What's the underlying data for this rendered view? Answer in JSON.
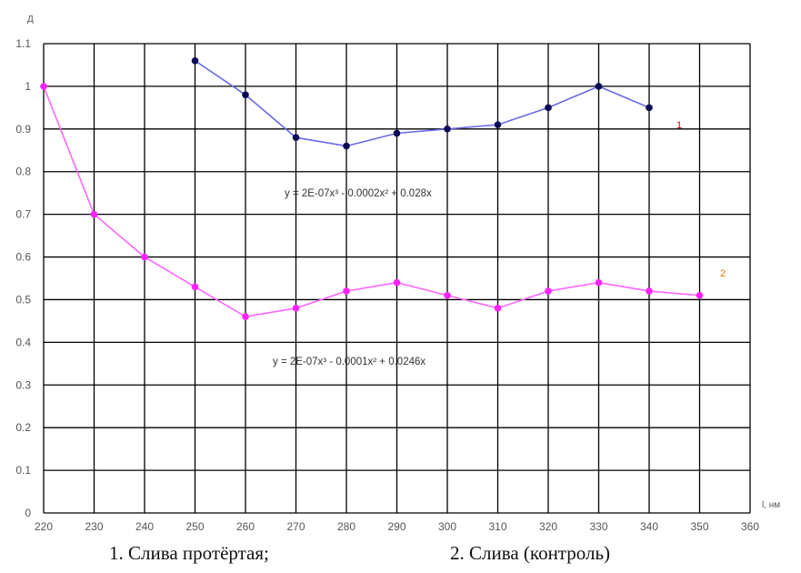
{
  "chart_data": {
    "type": "line",
    "ylabel": "Д",
    "xlabel": "l, нм",
    "xlim": [
      220,
      360
    ],
    "ylim": [
      0,
      1.1
    ],
    "x_ticks": [
      220,
      230,
      240,
      250,
      260,
      270,
      280,
      290,
      300,
      310,
      320,
      330,
      340,
      350,
      360
    ],
    "y_ticks": [
      0,
      0.1,
      0.2,
      0.3,
      0.4,
      0.5,
      0.6,
      0.7,
      0.8,
      0.9,
      1,
      1.1
    ],
    "grid": true,
    "series": [
      {
        "name": "1",
        "color": "#6a6ae8",
        "marker_color": "#0a0a55",
        "x": [
          250,
          260,
          270,
          280,
          290,
          300,
          310,
          320,
          330,
          340
        ],
        "y": [
          1.06,
          0.98,
          0.88,
          0.86,
          0.89,
          0.9,
          0.91,
          0.95,
          1.0,
          0.95
        ],
        "label_color": "#d40000"
      },
      {
        "name": "2",
        "color": "#ff66ff",
        "marker_color": "#ff22ff",
        "x": [
          220,
          230,
          240,
          250,
          260,
          270,
          280,
          290,
          300,
          310,
          320,
          330,
          340,
          350
        ],
        "y": [
          1.0,
          0.7,
          0.6,
          0.53,
          0.46,
          0.48,
          0.52,
          0.54,
          0.51,
          0.48,
          0.52,
          0.54,
          0.52,
          0.51
        ],
        "label_color": "#e07000"
      }
    ],
    "annotations": [
      {
        "text": "y = 2E-07x³ - 0.0002x² + 0.028x"
      },
      {
        "text": "y = 2E-07x³ - 0.0001x² + 0.0246x"
      }
    ]
  },
  "captions": {
    "left": "1. Слива протёртая;",
    "right": "2. Слива (контроль)"
  }
}
